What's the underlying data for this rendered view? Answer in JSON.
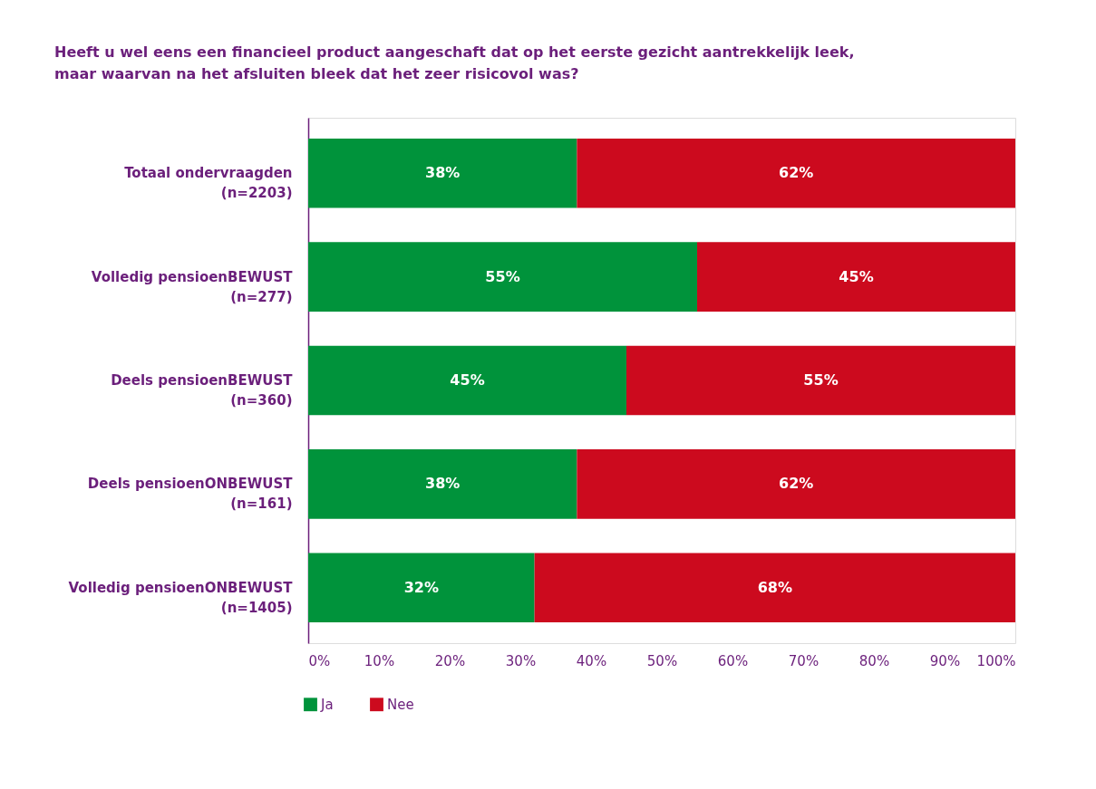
{
  "chart_data": {
    "type": "bar",
    "orientation": "horizontal",
    "stacked": true,
    "title": "Heeft u wel eens een financieel product aangeschaft dat op het eerste gezicht aantrekkelijk leek,\nmaar waarvan na het afsluiten bleek dat het zeer risicovol was?",
    "categories": [
      "Totaal ondervraagden\n(n=2203)",
      "Volledig pensioenBEWUST\n(n=277)",
      "Deels pensioenBEWUST\n(n=360)",
      "Deels pensioenONBEWUST\n(n=161)",
      "Volledig pensioenONBEWUST\n(n=1405)"
    ],
    "series": [
      {
        "name": "Ja",
        "color": "#00933b",
        "values": [
          38,
          55,
          45,
          38,
          32
        ],
        "value_labels": [
          "38%",
          "55%",
          "45%",
          "38%",
          "32%"
        ]
      },
      {
        "name": "Nee",
        "color": "#cc0a1e",
        "values": [
          62,
          45,
          55,
          62,
          68
        ],
        "value_labels": [
          "62%",
          "45%",
          "55%",
          "62%",
          "68%"
        ]
      }
    ],
    "xlim": [
      0,
      100
    ],
    "xticks": [
      {
        "value": 0,
        "label": "0%"
      },
      {
        "value": 10,
        "label": "10%"
      },
      {
        "value": 20,
        "label": "20%"
      },
      {
        "value": 30,
        "label": "30%"
      },
      {
        "value": 40,
        "label": "40%"
      },
      {
        "value": 50,
        "label": "50%"
      },
      {
        "value": 60,
        "label": "60%"
      },
      {
        "value": 70,
        "label": "70%"
      },
      {
        "value": 80,
        "label": "80%"
      },
      {
        "value": 90,
        "label": "90%"
      },
      {
        "value": 100,
        "label": "100%"
      }
    ],
    "grid": false,
    "legend": "bottom left"
  }
}
